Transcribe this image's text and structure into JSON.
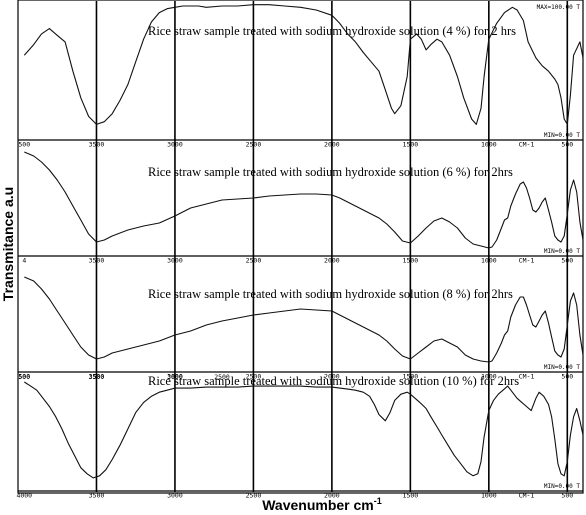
{
  "chart_data": {
    "type": "line",
    "xlabel": "Wavenumber cm",
    "xlabel_superscript": "-1",
    "ylabel": "Transmitance a.u",
    "xlim": [
      4000,
      400
    ],
    "ylim": [
      0,
      100
    ],
    "grid": "vertical",
    "gridlines_x": [
      3500,
      3000,
      2500,
      2000,
      1500,
      1000,
      500
    ],
    "panels": [
      {
        "title": "Rice straw sample treated with sodium hydroxide solution (4 %) for 2 hrs",
        "axis_tick_labels": [
          "500",
          "3500",
          "3000",
          "2500",
          "2000",
          "1500",
          "1000",
          "CM-1",
          "500"
        ],
        "max_label": "MAX=100.00 T",
        "min_label": "MIN=0.00 T",
        "x": [
          3960,
          3900,
          3850,
          3800,
          3750,
          3700,
          3650,
          3600,
          3550,
          3500,
          3450,
          3400,
          3350,
          3300,
          3250,
          3200,
          3150,
          3100,
          3050,
          3000,
          2950,
          2900,
          2850,
          2800,
          2700,
          2600,
          2500,
          2400,
          2300,
          2200,
          2100,
          2000,
          1950,
          1900,
          1850,
          1800,
          1750,
          1700,
          1660,
          1620,
          1600,
          1560,
          1520,
          1500,
          1460,
          1430,
          1400,
          1370,
          1330,
          1300,
          1250,
          1200,
          1160,
          1110,
          1080,
          1050,
          1030,
          1000,
          950,
          900,
          850,
          820,
          780,
          750,
          700,
          660,
          620,
          580,
          560,
          540,
          520,
          500,
          480,
          460,
          420,
          400
        ],
        "y": [
          60,
          68,
          76,
          80,
          75,
          70,
          48,
          28,
          14,
          8,
          10,
          16,
          26,
          38,
          55,
          72,
          85,
          92,
          95,
          96,
          97,
          97,
          97,
          96,
          97,
          97,
          98,
          98,
          97,
          96,
          94,
          90,
          84,
          76,
          70,
          62,
          55,
          48,
          34,
          20,
          16,
          22,
          44,
          72,
          76,
          72,
          64,
          68,
          72,
          70,
          60,
          44,
          28,
          12,
          8,
          20,
          44,
          72,
          84,
          92,
          96,
          94,
          86,
          70,
          58,
          52,
          48,
          42,
          38,
          28,
          12,
          8,
          30,
          60,
          70,
          58
        ]
      },
      {
        "title": "Rice straw sample treated with sodium hydroxide solution (6 %) for 2hrs",
        "axis_tick_labels": [
          "4",
          "3500",
          "3000",
          "2500",
          "2000",
          "1500",
          "1000",
          "CM-1",
          "500"
        ],
        "min_label": "MIN=0.00 T",
        "x": [
          3960,
          3900,
          3850,
          3800,
          3750,
          3700,
          3650,
          3600,
          3550,
          3500,
          3450,
          3400,
          3300,
          3200,
          3100,
          3000,
          2900,
          2800,
          2700,
          2600,
          2500,
          2400,
          2300,
          2200,
          2100,
          2000,
          1950,
          1900,
          1850,
          1800,
          1750,
          1700,
          1650,
          1600,
          1550,
          1500,
          1450,
          1400,
          1350,
          1300,
          1250,
          1200,
          1150,
          1100,
          1050,
          1000,
          980,
          950,
          920,
          900,
          880,
          860,
          830,
          800,
          780,
          760,
          740,
          720,
          700,
          680,
          660,
          640,
          620,
          600,
          580,
          560,
          540,
          520,
          500,
          480,
          460,
          440,
          420,
          400
        ],
        "y": [
          98,
          94,
          88,
          80,
          70,
          58,
          44,
          30,
          16,
          8,
          10,
          14,
          20,
          24,
          27,
          34,
          42,
          46,
          50,
          51,
          52,
          54,
          55,
          56,
          56,
          55,
          52,
          48,
          44,
          40,
          36,
          32,
          26,
          18,
          9,
          7,
          14,
          22,
          29,
          32,
          28,
          22,
          12,
          6,
          4,
          2,
          3,
          10,
          22,
          30,
          32,
          44,
          56,
          66,
          68,
          62,
          52,
          40,
          38,
          42,
          48,
          52,
          40,
          28,
          14,
          10,
          8,
          14,
          36,
          60,
          70,
          58,
          28,
          10
        ]
      },
      {
        "title": "Rice straw sample treated with sodium hydroxide solution (8 %) for 2hrs",
        "axis_tick_labels": [
          "500",
          "3500",
          "3000",
          "2500",
          "2000",
          "1500",
          "1000",
          "CM-1",
          "500"
        ],
        "min_label": "MIN=0.00 T",
        "x": [
          3960,
          3900,
          3850,
          3800,
          3750,
          3700,
          3650,
          3600,
          3550,
          3500,
          3450,
          3400,
          3300,
          3200,
          3100,
          3000,
          2900,
          2800,
          2700,
          2600,
          2500,
          2400,
          2300,
          2200,
          2100,
          2000,
          1950,
          1900,
          1850,
          1800,
          1750,
          1700,
          1650,
          1600,
          1550,
          1500,
          1450,
          1400,
          1350,
          1300,
          1250,
          1200,
          1150,
          1100,
          1050,
          1000,
          980,
          950,
          920,
          900,
          880,
          860,
          830,
          800,
          780,
          760,
          740,
          720,
          700,
          680,
          660,
          640,
          620,
          600,
          580,
          560,
          540,
          520,
          500,
          480,
          460,
          440,
          420,
          400
        ],
        "y": [
          88,
          84,
          76,
          66,
          54,
          42,
          30,
          18,
          10,
          6,
          8,
          12,
          16,
          20,
          24,
          30,
          34,
          40,
          44,
          47,
          50,
          52,
          54,
          56,
          55,
          54,
          50,
          46,
          42,
          38,
          34,
          30,
          24,
          16,
          9,
          6,
          12,
          18,
          24,
          26,
          22,
          18,
          10,
          6,
          4,
          3,
          4,
          12,
          22,
          30,
          34,
          48,
          60,
          68,
          68,
          60,
          50,
          40,
          38,
          44,
          50,
          54,
          42,
          28,
          14,
          10,
          8,
          16,
          40,
          64,
          72,
          60,
          30,
          10
        ]
      },
      {
        "title": "Rice straw sample treated with sodium hydroxide solution (10 %) for 2hrs",
        "axis_tick_labels": [
          "4000",
          "3500",
          "3000",
          "2500",
          "2000",
          "1500",
          "1000",
          "CM-1",
          "500"
        ],
        "top_tick_labels": [
          "500",
          "3500",
          "3000",
          "2500"
        ],
        "min_label": "MIN=0.00 T",
        "x": [
          3960,
          3920,
          3880,
          3840,
          3800,
          3760,
          3720,
          3680,
          3640,
          3600,
          3560,
          3520,
          3480,
          3440,
          3400,
          3350,
          3300,
          3250,
          3200,
          3150,
          3100,
          3050,
          3000,
          2900,
          2800,
          2700,
          2600,
          2500,
          2400,
          2300,
          2200,
          2100,
          2000,
          1950,
          1900,
          1850,
          1800,
          1760,
          1730,
          1700,
          1660,
          1630,
          1600,
          1560,
          1520,
          1500,
          1470,
          1440,
          1400,
          1370,
          1330,
          1300,
          1260,
          1220,
          1180,
          1140,
          1100,
          1070,
          1050,
          1030,
          1000,
          970,
          940,
          910,
          880,
          850,
          820,
          790,
          760,
          730,
          700,
          680,
          650,
          620,
          600,
          580,
          560,
          540,
          520,
          500,
          480,
          460,
          440,
          420,
          400
        ],
        "y": [
          100,
          96,
          92,
          84,
          76,
          66,
          54,
          40,
          28,
          16,
          10,
          6,
          8,
          14,
          24,
          38,
          54,
          70,
          80,
          86,
          90,
          92,
          94,
          94,
          95,
          95,
          95,
          96,
          96,
          96,
          96,
          95,
          95,
          94,
          93,
          92,
          90,
          86,
          78,
          68,
          62,
          70,
          82,
          88,
          90,
          88,
          84,
          80,
          74,
          66,
          56,
          48,
          38,
          28,
          20,
          12,
          8,
          10,
          22,
          46,
          72,
          82,
          88,
          92,
          96,
          90,
          84,
          80,
          76,
          72,
          84,
          90,
          86,
          78,
          66,
          44,
          20,
          10,
          8,
          22,
          48,
          66,
          74,
          62,
          48
        ]
      }
    ]
  }
}
